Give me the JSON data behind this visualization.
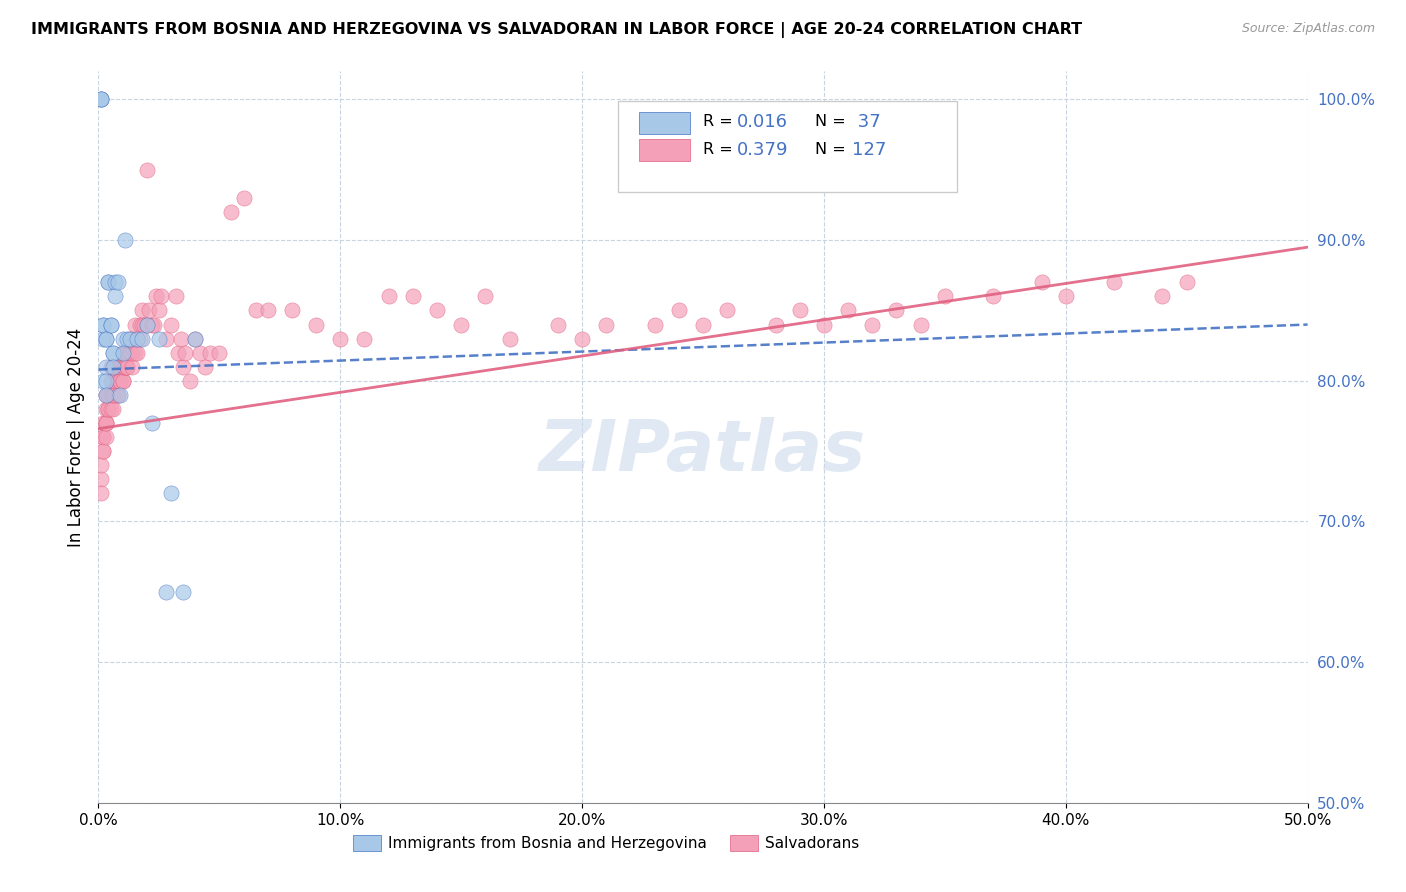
{
  "title": "IMMIGRANTS FROM BOSNIA AND HERZEGOVINA VS SALVADORAN IN LABOR FORCE | AGE 20-24 CORRELATION CHART",
  "source": "Source: ZipAtlas.com",
  "ylabel": "In Labor Force | Age 20-24",
  "xlim": [
    0.0,
    0.5
  ],
  "ylim": [
    0.5,
    1.02
  ],
  "ytick_labels": [
    "50.0%",
    "60.0%",
    "70.0%",
    "80.0%",
    "90.0%",
    "100.0%"
  ],
  "ytick_vals": [
    0.5,
    0.6,
    0.7,
    0.8,
    0.9,
    1.0
  ],
  "xtick_labels": [
    "0.0%",
    "10.0%",
    "20.0%",
    "30.0%",
    "40.0%",
    "50.0%"
  ],
  "xtick_vals": [
    0.0,
    0.1,
    0.2,
    0.3,
    0.4,
    0.5
  ],
  "R_bosnia": 0.016,
  "N_bosnia": 37,
  "R_salvadoran": 0.379,
  "N_salvadoran": 127,
  "color_bosnia": "#a8c8e8",
  "color_salvadoran": "#f4a0b8",
  "line_color_bosnia": "#4472c4",
  "line_color_salvadoran": "#e06080",
  "watermark": "ZIPatlas",
  "bosnia_x": [
    0.001,
    0.001,
    0.001,
    0.002,
    0.002,
    0.002,
    0.002,
    0.003,
    0.003,
    0.003,
    0.003,
    0.003,
    0.004,
    0.004,
    0.005,
    0.005,
    0.006,
    0.006,
    0.006,
    0.007,
    0.007,
    0.008,
    0.009,
    0.01,
    0.01,
    0.011,
    0.012,
    0.013,
    0.016,
    0.018,
    0.02,
    0.022,
    0.025,
    0.028,
    0.03,
    0.035,
    0.04
  ],
  "bosnia_y": [
    1.0,
    1.0,
    1.0,
    0.8,
    0.83,
    0.84,
    0.84,
    0.83,
    0.83,
    0.81,
    0.8,
    0.79,
    0.87,
    0.87,
    0.84,
    0.84,
    0.82,
    0.82,
    0.81,
    0.87,
    0.86,
    0.87,
    0.79,
    0.83,
    0.82,
    0.9,
    0.83,
    0.83,
    0.83,
    0.83,
    0.84,
    0.77,
    0.83,
    0.65,
    0.72,
    0.65,
    0.83
  ],
  "salvadoran_x": [
    0.001,
    0.001,
    0.001,
    0.002,
    0.002,
    0.002,
    0.002,
    0.002,
    0.003,
    0.003,
    0.003,
    0.003,
    0.003,
    0.003,
    0.004,
    0.004,
    0.004,
    0.004,
    0.005,
    0.005,
    0.005,
    0.005,
    0.005,
    0.006,
    0.006,
    0.006,
    0.006,
    0.006,
    0.007,
    0.007,
    0.007,
    0.007,
    0.007,
    0.008,
    0.008,
    0.008,
    0.008,
    0.008,
    0.009,
    0.009,
    0.009,
    0.009,
    0.01,
    0.01,
    0.01,
    0.01,
    0.01,
    0.011,
    0.011,
    0.011,
    0.011,
    0.012,
    0.012,
    0.012,
    0.012,
    0.013,
    0.013,
    0.013,
    0.014,
    0.014,
    0.014,
    0.015,
    0.015,
    0.015,
    0.016,
    0.016,
    0.017,
    0.017,
    0.018,
    0.018,
    0.019,
    0.02,
    0.02,
    0.021,
    0.022,
    0.023,
    0.024,
    0.025,
    0.026,
    0.028,
    0.03,
    0.032,
    0.033,
    0.034,
    0.035,
    0.036,
    0.038,
    0.04,
    0.042,
    0.044,
    0.046,
    0.05,
    0.055,
    0.06,
    0.065,
    0.07,
    0.08,
    0.09,
    0.1,
    0.11,
    0.12,
    0.13,
    0.14,
    0.15,
    0.16,
    0.17,
    0.19,
    0.2,
    0.21,
    0.23,
    0.24,
    0.25,
    0.26,
    0.28,
    0.29,
    0.3,
    0.31,
    0.32,
    0.33,
    0.34,
    0.35,
    0.37,
    0.39,
    0.4,
    0.42,
    0.44,
    0.45
  ],
  "salvadoran_y": [
    0.73,
    0.74,
    0.72,
    0.77,
    0.76,
    0.75,
    0.76,
    0.75,
    0.79,
    0.77,
    0.76,
    0.77,
    0.77,
    0.78,
    0.78,
    0.79,
    0.78,
    0.79,
    0.8,
    0.79,
    0.78,
    0.8,
    0.81,
    0.8,
    0.79,
    0.78,
    0.79,
    0.8,
    0.81,
    0.8,
    0.79,
    0.8,
    0.81,
    0.8,
    0.81,
    0.79,
    0.8,
    0.79,
    0.8,
    0.81,
    0.8,
    0.81,
    0.8,
    0.81,
    0.8,
    0.82,
    0.81,
    0.81,
    0.82,
    0.82,
    0.81,
    0.82,
    0.81,
    0.82,
    0.81,
    0.82,
    0.82,
    0.83,
    0.81,
    0.82,
    0.83,
    0.82,
    0.83,
    0.84,
    0.82,
    0.83,
    0.84,
    0.83,
    0.84,
    0.85,
    0.84,
    0.84,
    0.95,
    0.85,
    0.84,
    0.84,
    0.86,
    0.85,
    0.86,
    0.83,
    0.84,
    0.86,
    0.82,
    0.83,
    0.81,
    0.82,
    0.8,
    0.83,
    0.82,
    0.81,
    0.82,
    0.82,
    0.92,
    0.93,
    0.85,
    0.85,
    0.85,
    0.84,
    0.83,
    0.83,
    0.86,
    0.86,
    0.85,
    0.84,
    0.86,
    0.83,
    0.84,
    0.83,
    0.84,
    0.84,
    0.85,
    0.84,
    0.85,
    0.84,
    0.85,
    0.84,
    0.85,
    0.84,
    0.85,
    0.84,
    0.86,
    0.86,
    0.87,
    0.86,
    0.87,
    0.86,
    0.87
  ],
  "bosnia_line_x": [
    0.0,
    0.5
  ],
  "bosnia_line_y": [
    0.808,
    0.84
  ],
  "salvadoran_line_x": [
    0.0,
    0.5
  ],
  "salvadoran_line_y": [
    0.766,
    0.895
  ]
}
